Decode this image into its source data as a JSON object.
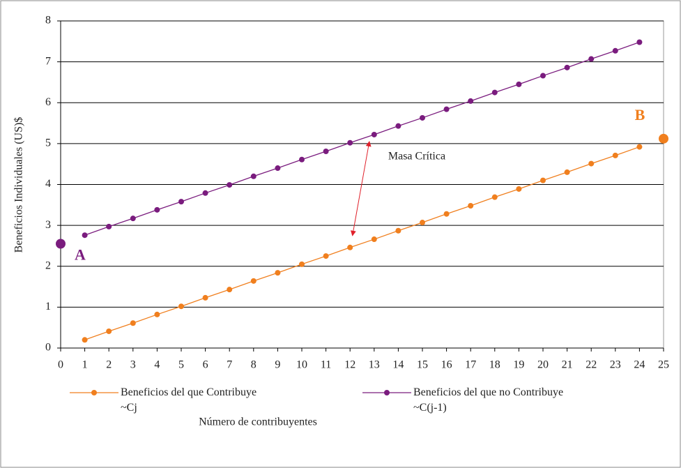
{
  "chart_data": {
    "type": "line",
    "xlabel": "Número de contribuyentes",
    "ylabel": "Beneficios Individuales (US)$",
    "xlim": [
      0,
      25
    ],
    "xticks": [
      0,
      1,
      2,
      3,
      4,
      5,
      6,
      7,
      8,
      9,
      10,
      11,
      12,
      13,
      14,
      15,
      16,
      17,
      18,
      19,
      20,
      21,
      22,
      23,
      24,
      25
    ],
    "ylim": [
      0,
      8
    ],
    "yticks": [
      0,
      1,
      2,
      3,
      4,
      5,
      6,
      7,
      8
    ],
    "grid": true,
    "legend": "bottom",
    "series": [
      {
        "name": "Beneficios del  que Contribuye\n~Cj",
        "color": "#f07f1e",
        "x": [
          1,
          2,
          3,
          4,
          5,
          6,
          7,
          8,
          9,
          10,
          11,
          12,
          13,
          14,
          15,
          16,
          17,
          18,
          19,
          20,
          21,
          22,
          23,
          24
        ],
        "values": [
          0.2,
          0.41,
          0.61,
          0.82,
          1.02,
          1.23,
          1.43,
          1.64,
          1.84,
          2.05,
          2.25,
          2.46,
          2.66,
          2.87,
          3.07,
          3.28,
          3.48,
          3.69,
          3.89,
          4.1,
          4.3,
          4.51,
          4.71,
          4.92
        ]
      },
      {
        "name": "Beneficios del que no Contribuye\n~C(j-1)",
        "color": "#7a1c7e",
        "x": [
          1,
          2,
          3,
          4,
          5,
          6,
          7,
          8,
          9,
          10,
          11,
          12,
          13,
          14,
          15,
          16,
          17,
          18,
          19,
          20,
          21,
          22,
          23,
          24
        ],
        "values": [
          2.76,
          2.97,
          3.17,
          3.38,
          3.58,
          3.79,
          3.99,
          4.2,
          4.4,
          4.61,
          4.81,
          5.02,
          5.22,
          5.43,
          5.63,
          5.84,
          6.04,
          6.25,
          6.45,
          6.66,
          6.86,
          7.07,
          7.27,
          7.48
        ]
      }
    ],
    "points": [
      {
        "text": "A",
        "x": 0,
        "y": 2.55,
        "color": "#7a1c7e"
      },
      {
        "text": "B",
        "x": 25,
        "y": 5.12,
        "color": "#f07f1e"
      }
    ],
    "annotation": {
      "text": "Masa Crítica",
      "x": [
        12.8,
        12.1
      ],
      "y": [
        5.05,
        2.75
      ],
      "color": "#e0202a"
    }
  }
}
